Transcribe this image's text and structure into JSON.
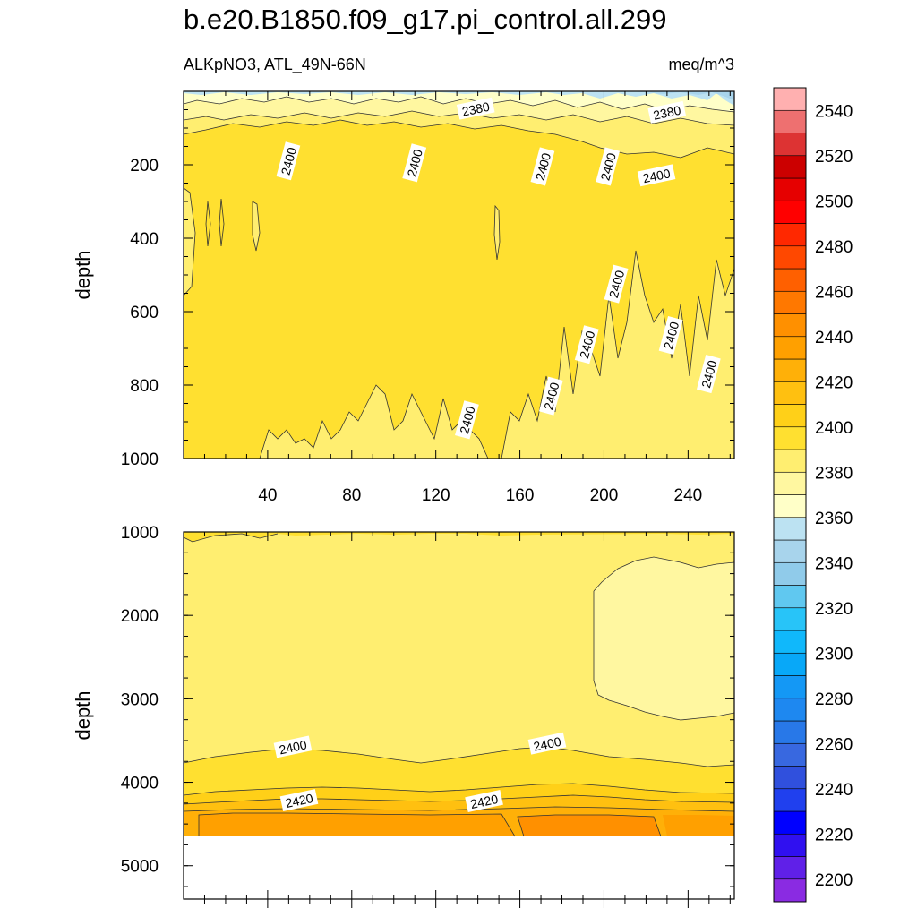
{
  "chart_data": {
    "type": "heatmap",
    "title": "b.e20.B1850.f09_g17.pi_control.all.299",
    "subtitle_left": "ALKpNO3, ATL_49N-66N",
    "subtitle_right": "meq/m^3",
    "panels": [
      {
        "name": "upper",
        "ylabel": "depth",
        "xlim": [
          0,
          262
        ],
        "ylim": [
          1000,
          0
        ],
        "x_ticks": [
          40,
          80,
          120,
          160,
          200,
          240
        ],
        "y_ticks": [
          200,
          400,
          600,
          800,
          1000
        ],
        "contour_labels": [
          {
            "text": "2380",
            "x": 139,
            "y": 48
          },
          {
            "text": "2380",
            "x": 230,
            "y": 58
          },
          {
            "text": "2400",
            "x": 50,
            "y": 190
          },
          {
            "text": "2400",
            "x": 110,
            "y": 195
          },
          {
            "text": "2400",
            "x": 171,
            "y": 205
          },
          {
            "text": "2400",
            "x": 202,
            "y": 205
          },
          {
            "text": "2400",
            "x": 225,
            "y": 230
          },
          {
            "text": "2400",
            "x": 206,
            "y": 525
          },
          {
            "text": "2400",
            "x": 192,
            "y": 690
          },
          {
            "text": "2400",
            "x": 232,
            "y": 665
          },
          {
            "text": "2400",
            "x": 250,
            "y": 770
          },
          {
            "text": "2400",
            "x": 175,
            "y": 830
          },
          {
            "text": "2400",
            "x": 135,
            "y": 895
          }
        ]
      },
      {
        "name": "lower",
        "ylabel": "depth",
        "xlim": [
          0,
          262
        ],
        "ylim": [
          5400,
          1000
        ],
        "y_ticks": [
          1000,
          2000,
          3000,
          4000,
          5000
        ],
        "contour_labels": [
          {
            "text": "2400",
            "x": 52,
            "y": 3580
          },
          {
            "text": "2400",
            "x": 173,
            "y": 3540
          },
          {
            "text": "2420",
            "x": 55,
            "y": 4220
          },
          {
            "text": "2420",
            "x": 143,
            "y": 4230
          }
        ]
      }
    ],
    "colorbar": {
      "levels_min": 2190,
      "levels_max": 2560,
      "step": 10,
      "tick_labels": [
        "2200",
        "2220",
        "2240",
        "2260",
        "2280",
        "2300",
        "2320",
        "2340",
        "2360",
        "2380",
        "2400",
        "2420",
        "2440",
        "2460",
        "2480",
        "2500",
        "2520",
        "2540"
      ],
      "colors": [
        "#8a2be2",
        "#6020e8",
        "#3010f0",
        "#0000ff",
        "#2040ee",
        "#3050dd",
        "#3868e0",
        "#2878e8",
        "#1e88f0",
        "#1498f5",
        "#08a8f8",
        "#10b8fb",
        "#28c4f8",
        "#60c8f0",
        "#90cbea",
        "#a8d4ec",
        "#bce2f2",
        "#ffffc8",
        "#fff7a0",
        "#ffee70",
        "#ffe030",
        "#ffd018",
        "#ffc010",
        "#ffb008",
        "#ffa000",
        "#ff9000",
        "#ff7800",
        "#ff6000",
        "#ff4800",
        "#ff2800",
        "#ff0000",
        "#e60000",
        "#cc0000",
        "#dd3333",
        "#ee7070",
        "#ffb0b0"
      ]
    }
  }
}
